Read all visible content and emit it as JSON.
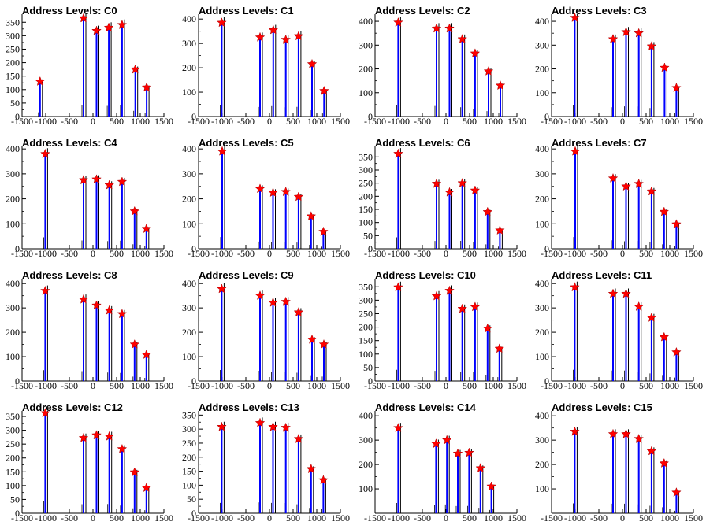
{
  "chart_data": [
    {
      "type": "bar",
      "title": "Address Levels: C0",
      "xlim": [
        -1500,
        1500
      ],
      "ylim": [
        0,
        380
      ],
      "yticks": [
        0,
        50,
        100,
        150,
        200,
        250,
        300,
        350
      ],
      "xticks": [
        -1500,
        -1000,
        -500,
        0,
        500,
        1000,
        1500
      ],
      "x": [
        -1120,
        -200,
        75,
        335,
        615,
        895,
        1135
      ],
      "values": [
        130,
        365,
        318,
        330,
        340,
        175,
        108
      ]
    },
    {
      "type": "bar",
      "title": "Address Levels: C1",
      "xlim": [
        -1500,
        1500
      ],
      "ylim": [
        0,
        420
      ],
      "yticks": [
        0,
        100,
        200,
        300,
        400
      ],
      "xticks": [
        -1500,
        -1000,
        -500,
        0,
        500,
        1000,
        1500
      ],
      "x": [
        -1010,
        -200,
        80,
        345,
        615,
        900,
        1155
      ],
      "values": [
        385,
        325,
        355,
        315,
        330,
        215,
        105
      ]
    },
    {
      "type": "bar",
      "title": "Address Levels: C2",
      "xlim": [
        -1500,
        1500
      ],
      "ylim": [
        0,
        430
      ],
      "yticks": [
        0,
        100,
        200,
        300,
        400
      ],
      "xticks": [
        -1500,
        -1000,
        -500,
        0,
        500,
        1000,
        1500
      ],
      "x": [
        -1010,
        -200,
        75,
        345,
        615,
        900,
        1150
      ],
      "values": [
        395,
        370,
        370,
        325,
        265,
        190,
        130
      ]
    },
    {
      "type": "bar",
      "title": "Address Levels: C3",
      "xlim": [
        -1500,
        1500
      ],
      "ylim": [
        0,
        430
      ],
      "yticks": [
        0,
        100,
        200,
        300,
        400
      ],
      "xticks": [
        -1500,
        -1000,
        -500,
        0,
        500,
        1000,
        1500
      ],
      "x": [
        -1010,
        -200,
        75,
        345,
        615,
        890,
        1140
      ],
      "values": [
        415,
        325,
        355,
        350,
        295,
        205,
        120
      ]
    },
    {
      "type": "bar",
      "title": "Address Levels: C4",
      "xlim": [
        -1500,
        1500
      ],
      "ylim": [
        0,
        410
      ],
      "yticks": [
        0,
        100,
        200,
        300,
        400
      ],
      "xticks": [
        -1500,
        -1000,
        -500,
        0,
        500,
        1000,
        1500
      ],
      "x": [
        -1010,
        -200,
        75,
        345,
        615,
        880,
        1130
      ],
      "values": [
        380,
        275,
        278,
        255,
        268,
        150,
        80
      ]
    },
    {
      "type": "bar",
      "title": "Address Levels: C5",
      "xlim": [
        -1500,
        1500
      ],
      "ylim": [
        0,
        410
      ],
      "yticks": [
        0,
        100,
        200,
        300,
        400
      ],
      "xticks": [
        -1500,
        -1000,
        -500,
        0,
        500,
        1000,
        1500
      ],
      "x": [
        -1000,
        -200,
        75,
        345,
        615,
        880,
        1140
      ],
      "values": [
        390,
        240,
        225,
        228,
        208,
        130,
        68
      ]
    },
    {
      "type": "bar",
      "title": "Address Levels: C6",
      "xlim": [
        -1500,
        1500
      ],
      "ylim": [
        0,
        390
      ],
      "yticks": [
        0,
        50,
        100,
        150,
        200,
        250,
        300,
        350
      ],
      "xticks": [
        -1500,
        -1000,
        -500,
        0,
        500,
        1000,
        1500
      ],
      "x": [
        -1010,
        -200,
        75,
        345,
        615,
        880,
        1140
      ],
      "values": [
        362,
        248,
        215,
        250,
        222,
        140,
        70
      ]
    },
    {
      "type": "bar",
      "title": "Address Levels: C7",
      "xlim": [
        -1500,
        1500
      ],
      "ylim": [
        0,
        410
      ],
      "yticks": [
        0,
        100,
        200,
        300,
        400
      ],
      "xticks": [
        -1500,
        -1000,
        -500,
        0,
        500,
        1000,
        1500
      ],
      "x": [
        -1000,
        -200,
        75,
        345,
        615,
        880,
        1140
      ],
      "values": [
        390,
        282,
        250,
        260,
        230,
        148,
        98
      ]
    },
    {
      "type": "bar",
      "title": "Address Levels: C8",
      "xlim": [
        -1500,
        1500
      ],
      "ylim": [
        0,
        420
      ],
      "yticks": [
        0,
        100,
        200,
        300,
        400
      ],
      "xticks": [
        -1500,
        -1000,
        -500,
        0,
        500,
        1000,
        1500
      ],
      "x": [
        -1010,
        -200,
        75,
        345,
        615,
        880,
        1130
      ],
      "values": [
        370,
        335,
        310,
        290,
        275,
        150,
        108
      ]
    },
    {
      "type": "bar",
      "title": "Address Levels: C9",
      "xlim": [
        -1500,
        1500
      ],
      "ylim": [
        0,
        420
      ],
      "yticks": [
        0,
        100,
        200,
        300,
        400
      ],
      "xticks": [
        -1500,
        -1000,
        -500,
        0,
        500,
        1000,
        1500
      ],
      "x": [
        -1010,
        -200,
        75,
        345,
        615,
        900,
        1150
      ],
      "values": [
        378,
        350,
        322,
        325,
        282,
        170,
        150
      ]
    },
    {
      "type": "bar",
      "title": "Address Levels: C10",
      "xlim": [
        -1500,
        1500
      ],
      "ylim": [
        0,
        380
      ],
      "yticks": [
        0,
        50,
        100,
        150,
        200,
        250,
        300,
        350
      ],
      "xticks": [
        -1500,
        -1000,
        -500,
        0,
        500,
        1000,
        1500
      ],
      "x": [
        -1010,
        -200,
        75,
        345,
        615,
        880,
        1130
      ],
      "values": [
        348,
        315,
        335,
        268,
        275,
        195,
        120
      ]
    },
    {
      "type": "bar",
      "title": "Address Levels: C11",
      "xlim": [
        -1500,
        1500
      ],
      "ylim": [
        0,
        420
      ],
      "yticks": [
        0,
        100,
        200,
        300,
        400
      ],
      "xticks": [
        -1500,
        -1000,
        -500,
        0,
        500,
        1000,
        1500
      ],
      "x": [
        -1010,
        -200,
        75,
        345,
        615,
        880,
        1140
      ],
      "values": [
        385,
        358,
        358,
        305,
        260,
        180,
        118
      ]
    },
    {
      "type": "bar",
      "title": "Address Levels: C12",
      "xlim": [
        -1500,
        1500
      ],
      "ylim": [
        0,
        370
      ],
      "yticks": [
        0,
        50,
        100,
        150,
        200,
        250,
        300,
        350
      ],
      "xticks": [
        -1500,
        -1000,
        -500,
        0,
        500,
        1000,
        1500
      ],
      "x": [
        -1010,
        -200,
        75,
        345,
        615,
        880,
        1130
      ],
      "values": [
        362,
        272,
        282,
        278,
        232,
        148,
        92
      ]
    },
    {
      "type": "bar",
      "title": "Address Levels: C13",
      "xlim": [
        -1500,
        1500
      ],
      "ylim": [
        0,
        365
      ],
      "yticks": [
        0,
        50,
        100,
        150,
        200,
        250,
        300,
        350
      ],
      "xticks": [
        -1500,
        -1000,
        -500,
        0,
        500,
        1000,
        1500
      ],
      "x": [
        -1010,
        -200,
        75,
        345,
        615,
        880,
        1140
      ],
      "values": [
        308,
        322,
        308,
        305,
        265,
        158,
        118
      ]
    },
    {
      "type": "bar",
      "title": "Address Levels: C14",
      "xlim": [
        -1500,
        1500
      ],
      "ylim": [
        0,
        420
      ],
      "yticks": [
        100,
        200,
        300,
        400
      ],
      "xticks": [
        -1500,
        -1000,
        -500,
        0,
        500,
        1000,
        1500
      ],
      "x": [
        -1010,
        -210,
        20,
        250,
        490,
        730,
        960
      ],
      "values": [
        350,
        285,
        300,
        245,
        248,
        185,
        110
      ]
    },
    {
      "type": "bar",
      "title": "Address Levels: C15",
      "xlim": [
        -1500,
        1500
      ],
      "ylim": [
        0,
        420
      ],
      "yticks": [
        100,
        200,
        300,
        400
      ],
      "xticks": [
        -1500,
        -1000,
        -500,
        0,
        500,
        1000,
        1500
      ],
      "x": [
        -1010,
        -200,
        75,
        345,
        615,
        880,
        1140
      ],
      "values": [
        335,
        325,
        325,
        305,
        255,
        205,
        85
      ]
    }
  ],
  "colors": {
    "bar": "#0000ff",
    "outline": "#000000",
    "marker": "#ff0000",
    "marker_stroke": "#aa0000",
    "axis": "#000000"
  }
}
